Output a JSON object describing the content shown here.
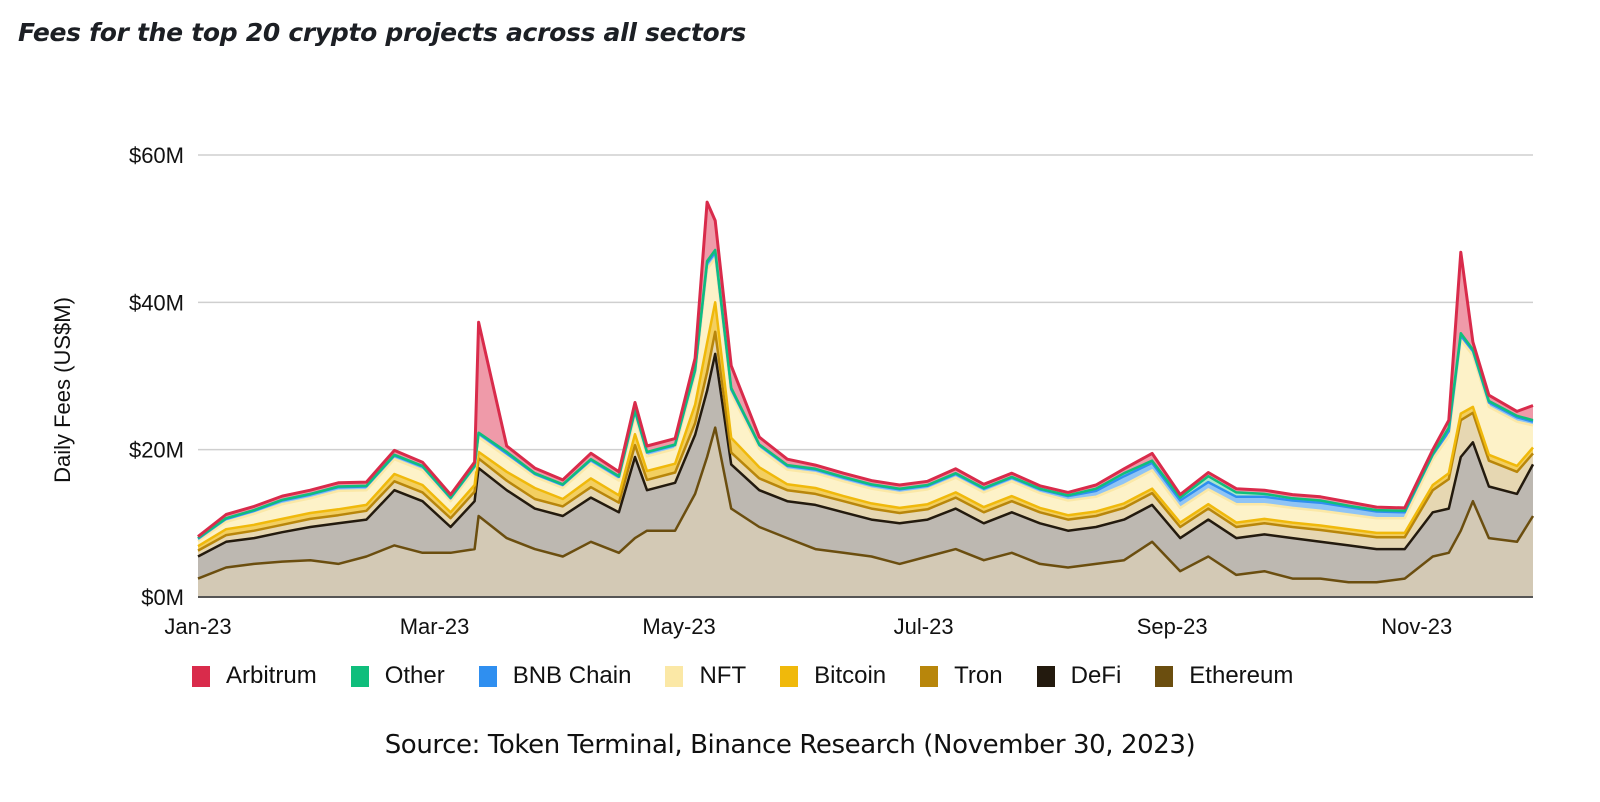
{
  "title": "Fees for the top 20 crypto projects across all sectors",
  "source": "Source: Token Terminal, Binance Research (November 30, 2023)",
  "colors": {
    "Arbitrum": "#d92b4b",
    "Other": "#0fbe7c",
    "BNB Chain": "#2f8ff0",
    "NFT": "#fbe8a6",
    "Bitcoin": "#f0b90b",
    "Tron": "#b8860b",
    "DeFi": "#231a0e",
    "Ethereum": "#6b4e0f"
  },
  "legend": [
    {
      "label": "Arbitrum",
      "color": "#d92b4b"
    },
    {
      "label": "Other",
      "color": "#0fbe7c"
    },
    {
      "label": "BNB Chain",
      "color": "#2f8ff0"
    },
    {
      "label": "NFT",
      "color": "#fbe8a6"
    },
    {
      "label": "Bitcoin",
      "color": "#f0b90b"
    },
    {
      "label": "Tron",
      "color": "#b8860b"
    },
    {
      "label": "DeFi",
      "color": "#231a0e"
    },
    {
      "label": "Ethereum",
      "color": "#6b4e0f"
    }
  ],
  "chart_data": {
    "type": "area",
    "stacked": true,
    "title": "Fees for the top 20 crypto projects across all sectors",
    "xlabel": "",
    "ylabel": "Daily Fees (US$M)",
    "ylim": [
      0,
      60
    ],
    "yticks": [
      0,
      20,
      40,
      60
    ],
    "ytick_labels": [
      "$0M",
      "$20M",
      "$40M",
      "$60M"
    ],
    "xticks": [
      "Jan-23",
      "Mar-23",
      "May-23",
      "Jul-23",
      "Sep-23",
      "Nov-23"
    ],
    "x_range": [
      "2023-01-01",
      "2023-11-30"
    ],
    "grid": "horizontal",
    "legend_position": "bottom",
    "x": [
      "2023-01-01",
      "2023-01-08",
      "2023-01-15",
      "2023-01-22",
      "2023-01-29",
      "2023-02-05",
      "2023-02-12",
      "2023-02-19",
      "2023-02-26",
      "2023-03-05",
      "2023-03-11",
      "2023-03-12",
      "2023-03-19",
      "2023-03-26",
      "2023-04-02",
      "2023-04-09",
      "2023-04-16",
      "2023-04-20",
      "2023-04-23",
      "2023-04-30",
      "2023-05-05",
      "2023-05-08",
      "2023-05-10",
      "2023-05-14",
      "2023-05-21",
      "2023-05-28",
      "2023-06-04",
      "2023-06-11",
      "2023-06-18",
      "2023-06-25",
      "2023-07-02",
      "2023-07-09",
      "2023-07-16",
      "2023-07-23",
      "2023-07-30",
      "2023-08-06",
      "2023-08-13",
      "2023-08-20",
      "2023-08-27",
      "2023-09-03",
      "2023-09-10",
      "2023-09-17",
      "2023-09-24",
      "2023-10-01",
      "2023-10-08",
      "2023-10-15",
      "2023-10-22",
      "2023-10-29",
      "2023-11-05",
      "2023-11-09",
      "2023-11-12",
      "2023-11-15",
      "2023-11-19",
      "2023-11-26",
      "2023-11-30"
    ],
    "series": [
      {
        "name": "Ethereum",
        "values": [
          2.5,
          4.0,
          4.5,
          4.8,
          5.0,
          4.5,
          5.5,
          7.0,
          6.0,
          6.0,
          6.5,
          11.0,
          8.0,
          6.5,
          5.5,
          7.5,
          6.0,
          8.0,
          9.0,
          9.0,
          14.0,
          19.0,
          23.0,
          12.0,
          9.5,
          8.0,
          6.5,
          6.0,
          5.5,
          4.5,
          5.5,
          6.5,
          5.0,
          6.0,
          4.5,
          4.0,
          4.5,
          5.0,
          7.5,
          3.5,
          5.5,
          3.0,
          3.5,
          2.5,
          2.5,
          2.0,
          2.0,
          2.5,
          5.5,
          6.0,
          9.0,
          13.0,
          8.0,
          7.5,
          11.0
        ]
      },
      {
        "name": "DeFi",
        "values": [
          3.0,
          3.5,
          3.5,
          4.0,
          4.5,
          5.5,
          5.0,
          7.5,
          7.0,
          3.5,
          6.5,
          6.5,
          6.5,
          5.5,
          5.5,
          6.0,
          5.5,
          11.0,
          5.5,
          6.5,
          8.0,
          9.0,
          10.0,
          6.0,
          5.0,
          5.0,
          6.0,
          5.5,
          5.0,
          5.5,
          5.0,
          5.5,
          5.0,
          5.5,
          5.5,
          5.0,
          5.0,
          5.5,
          5.0,
          4.5,
          5.0,
          5.0,
          5.0,
          5.5,
          5.0,
          5.0,
          4.5,
          4.0,
          6.0,
          6.0,
          10.0,
          8.0,
          7.0,
          6.5,
          7.0
        ]
      },
      {
        "name": "Tron",
        "values": [
          0.8,
          0.9,
          1.0,
          1.0,
          1.1,
          1.1,
          1.2,
          1.2,
          1.2,
          1.2,
          1.3,
          1.3,
          1.3,
          1.3,
          1.3,
          1.4,
          1.3,
          1.6,
          1.4,
          1.4,
          1.6,
          2.5,
          3.0,
          1.6,
          1.6,
          1.5,
          1.5,
          1.5,
          1.5,
          1.4,
          1.4,
          1.5,
          1.5,
          1.5,
          1.5,
          1.5,
          1.5,
          1.6,
          1.6,
          1.5,
          1.5,
          1.5,
          1.5,
          1.5,
          1.6,
          1.6,
          1.6,
          1.6,
          3.0,
          4.0,
          5.0,
          4.0,
          3.5,
          3.0,
          1.5
        ]
      },
      {
        "name": "Bitcoin",
        "values": [
          0.6,
          0.8,
          0.8,
          0.8,
          0.8,
          0.8,
          0.8,
          1.0,
          1.0,
          0.8,
          0.9,
          0.9,
          1.2,
          1.5,
          1.0,
          1.2,
          1.0,
          1.5,
          1.2,
          1.2,
          2.5,
          4.0,
          4.0,
          2.0,
          1.5,
          0.8,
          0.8,
          0.7,
          0.7,
          0.7,
          0.7,
          0.7,
          0.7,
          0.7,
          0.6,
          0.6,
          0.6,
          0.6,
          0.6,
          0.6,
          0.6,
          0.6,
          0.6,
          0.6,
          0.6,
          0.6,
          0.6,
          0.6,
          0.7,
          0.8,
          0.9,
          0.8,
          0.8,
          0.8,
          0.8
        ]
      },
      {
        "name": "NFT",
        "values": [
          0.7,
          1.0,
          1.5,
          2.0,
          2.0,
          2.5,
          2.0,
          2.0,
          2.0,
          1.5,
          2.0,
          2.0,
          2.0,
          1.5,
          1.5,
          2.0,
          2.0,
          2.5,
          2.0,
          2.0,
          4.0,
          10.0,
          6.0,
          6.0,
          2.5,
          2.0,
          2.0,
          2.0,
          2.0,
          2.0,
          2.0,
          2.0,
          2.0,
          2.0,
          2.0,
          2.0,
          2.0,
          2.5,
          2.5,
          2.0,
          2.0,
          2.5,
          2.0,
          2.0,
          2.0,
          2.0,
          2.0,
          2.0,
          3.5,
          5.0,
          10.0,
          7.0,
          6.5,
          6.0,
          3.0
        ]
      },
      {
        "name": "BNB Chain",
        "values": [
          0.3,
          0.4,
          0.4,
          0.5,
          0.5,
          0.5,
          0.5,
          0.5,
          0.5,
          0.4,
          0.5,
          0.5,
          0.5,
          0.4,
          0.4,
          0.5,
          0.5,
          0.6,
          0.5,
          0.5,
          0.6,
          0.8,
          0.8,
          0.6,
          0.5,
          0.5,
          0.5,
          0.5,
          0.5,
          0.5,
          0.5,
          0.5,
          0.5,
          0.5,
          0.5,
          0.6,
          0.8,
          1.2,
          1.0,
          1.0,
          1.0,
          1.0,
          1.0,
          1.0,
          1.1,
          1.0,
          0.9,
          0.8,
          0.6,
          0.7,
          0.6,
          0.6,
          0.6,
          0.6,
          0.5
        ]
      },
      {
        "name": "Other",
        "values": [
          0.1,
          0.1,
          0.1,
          0.1,
          0.1,
          0.1,
          0.1,
          0.1,
          0.1,
          0.1,
          0.1,
          0.1,
          0.2,
          0.1,
          0.1,
          0.1,
          0.1,
          0.2,
          0.1,
          0.1,
          0.2,
          0.3,
          0.3,
          0.2,
          0.1,
          0.1,
          0.1,
          0.1,
          0.1,
          0.1,
          0.1,
          0.1,
          0.1,
          0.1,
          0.1,
          0.1,
          0.3,
          0.4,
          0.3,
          0.4,
          0.8,
          0.6,
          0.4,
          0.3,
          0.3,
          0.2,
          0.2,
          0.2,
          0.1,
          0.5,
          0.3,
          0.2,
          0.2,
          0.2,
          0.2
        ]
      },
      {
        "name": "Arbitrum",
        "values": [
          0.2,
          0.5,
          0.5,
          0.5,
          0.5,
          0.5,
          0.5,
          0.6,
          0.5,
          0.4,
          0.5,
          15.0,
          0.8,
          0.7,
          0.6,
          0.8,
          0.6,
          1.0,
          0.8,
          0.8,
          1.5,
          8.0,
          4.0,
          3.0,
          1.0,
          0.8,
          0.5,
          0.5,
          0.5,
          0.5,
          0.5,
          0.6,
          0.5,
          0.5,
          0.4,
          0.4,
          0.5,
          0.6,
          1.0,
          0.4,
          0.5,
          0.5,
          0.5,
          0.5,
          0.5,
          0.5,
          0.4,
          0.4,
          0.6,
          1.0,
          11.0,
          1.0,
          0.8,
          0.6,
          2.0
        ]
      }
    ]
  }
}
